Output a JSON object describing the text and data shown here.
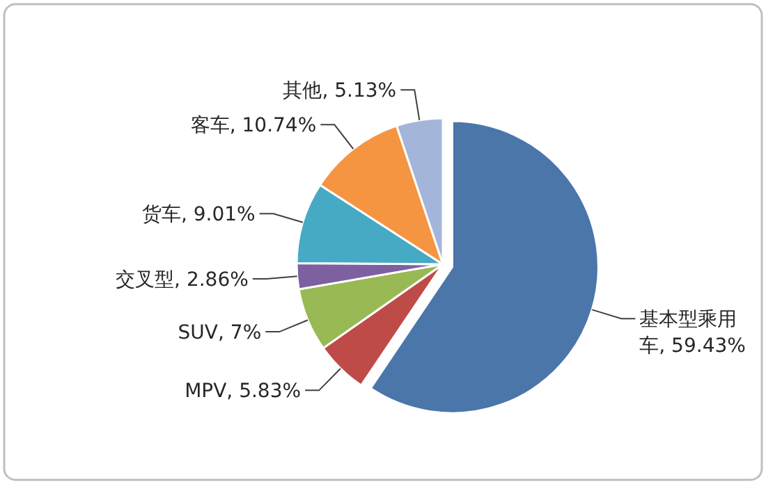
{
  "chart_data": {
    "type": "pie",
    "categories": [
      "基本型乘用车",
      "MPV",
      "SUV",
      "交叉型",
      "货车",
      "客车",
      "其他"
    ],
    "values": [
      59.43,
      5.83,
      7,
      2.86,
      9.01,
      10.74,
      5.13
    ],
    "value_labels": [
      "59.43%",
      "5.83%",
      "7%",
      "2.86%",
      "9.01%",
      "10.74%",
      "5.13%"
    ],
    "colors": [
      "#4a76aa",
      "#be4b48",
      "#98b954",
      "#7d60a0",
      "#46aac4",
      "#f59542",
      "#a3b6d9"
    ]
  }
}
